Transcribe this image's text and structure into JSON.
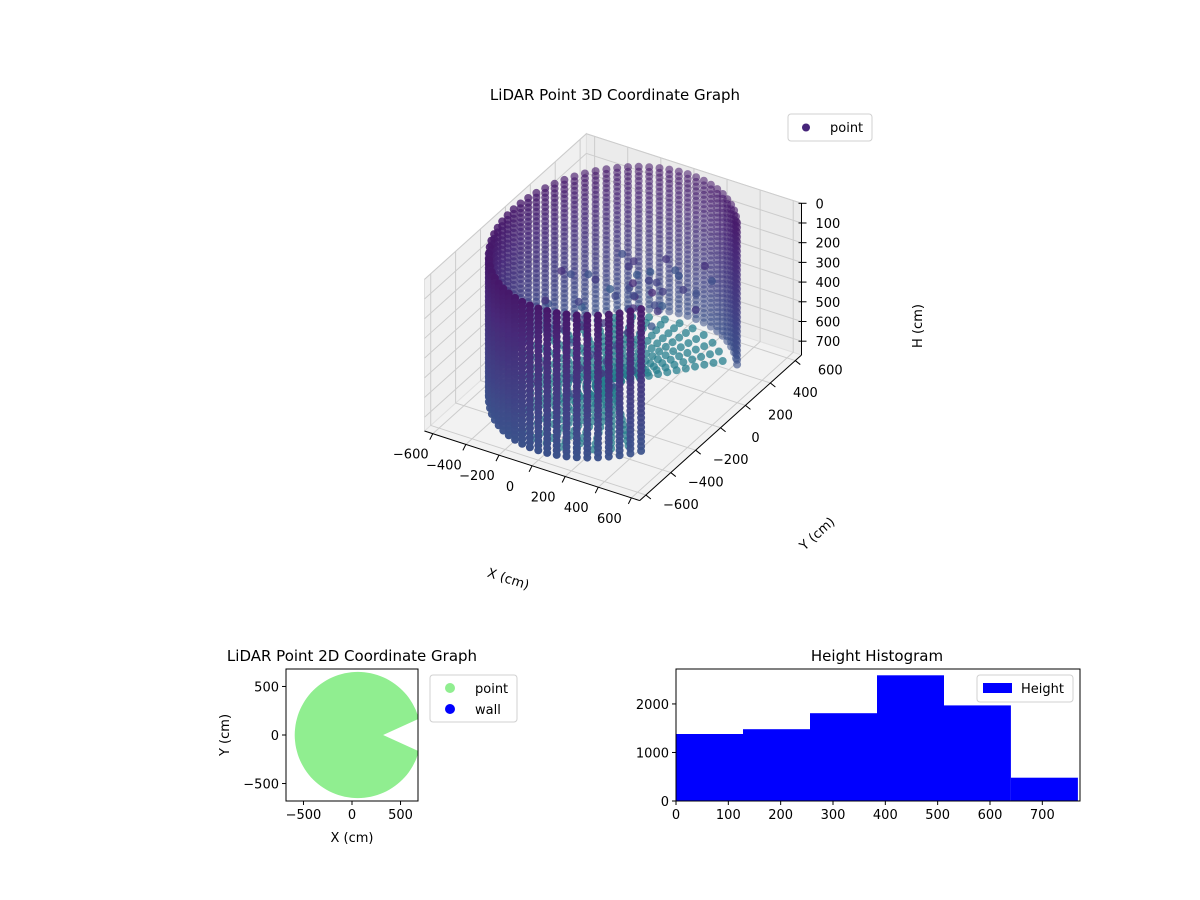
{
  "chart_data": [
    {
      "type": "scatter3d",
      "title": "LiDAR Point 3D Coordinate Graph",
      "xlabel": "X (cm)",
      "ylabel": "Y (cm)",
      "zlabel": "H (cm)",
      "xticks": [
        -600,
        -400,
        -200,
        0,
        200,
        400,
        600
      ],
      "yticks": [
        -600,
        -400,
        -200,
        0,
        200,
        400,
        600
      ],
      "zticks": [
        0,
        100,
        200,
        300,
        400,
        500,
        600,
        700
      ],
      "xlim": [
        -650,
        650
      ],
      "ylim": [
        -650,
        650
      ],
      "zlim": [
        770,
        0
      ],
      "z_inverted": true,
      "grid": true,
      "legend": {
        "position": "top-right",
        "entries": [
          {
            "name": "point",
            "color": "#46257a"
          }
        ]
      },
      "colormap": "viridis",
      "structure": {
        "wall_radius_cm": 600,
        "wall_height_range_cm": [
          0,
          720
        ],
        "floor_height_cm": 720,
        "gap_angle_deg": [
          -40,
          40
        ]
      }
    },
    {
      "type": "scatter",
      "title": "LiDAR Point 2D Coordinate Graph",
      "xlabel": "X (cm)",
      "ylabel": "Y (cm)",
      "xticks": [
        -500,
        0,
        500
      ],
      "yticks": [
        -500,
        0,
        500
      ],
      "xlim": [
        -680,
        680
      ],
      "ylim": [
        -680,
        680
      ],
      "legend": {
        "position": "outside-right",
        "entries": [
          {
            "name": "point",
            "color": "#90ee90"
          },
          {
            "name": "wall",
            "color": "#0000ff"
          }
        ]
      },
      "series": [
        {
          "name": "point",
          "color": "#90ee90",
          "shape": "disc-with-notch",
          "radius_cm": 650,
          "notch_angle_deg": [
            -15,
            15
          ]
        },
        {
          "name": "wall",
          "color": "#0000ff",
          "points": []
        }
      ]
    },
    {
      "type": "bar",
      "title": "Height Histogram",
      "xlabel": "",
      "ylabel": "",
      "bin_edges": [
        0,
        128,
        256,
        384,
        512,
        640,
        768
      ],
      "values": [
        1380,
        1480,
        1810,
        2590,
        1970,
        480
      ],
      "xticks": [
        0,
        100,
        200,
        300,
        400,
        500,
        600,
        700
      ],
      "yticks": [
        0,
        1000,
        2000
      ],
      "xlim": [
        0,
        772
      ],
      "ylim": [
        0,
        2720
      ],
      "color": "#0000ff",
      "legend": {
        "position": "top-right",
        "entries": [
          {
            "name": "Height",
            "color": "#0000ff"
          }
        ]
      }
    }
  ]
}
